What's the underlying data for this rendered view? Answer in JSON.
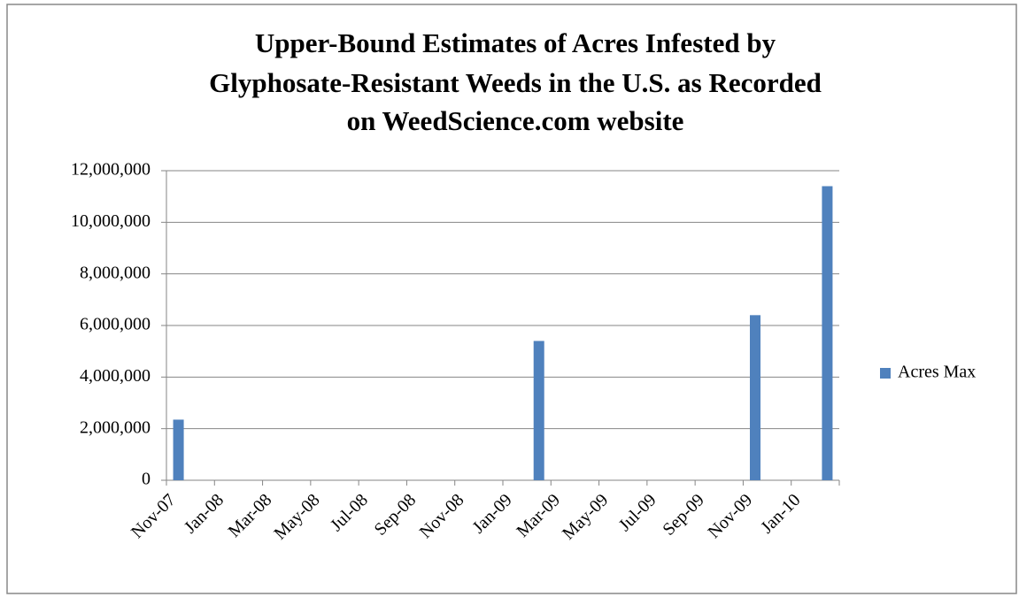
{
  "chart_data": {
    "type": "bar",
    "title": [
      "Upper-Bound Estimates of Acres Infested by",
      "Glyphosate-Resistant Weeds in the U.S. as Recorded",
      "on WeedScience.com website"
    ],
    "categories": [
      "Nov-07",
      null,
      "Jan-08",
      null,
      "Mar-08",
      null,
      "May-08",
      null,
      "Jul-08",
      null,
      "Sep-08",
      null,
      "Nov-08",
      null,
      "Jan-09",
      null,
      "Mar-09",
      null,
      "May-09",
      null,
      "Jul-09",
      null,
      "Sep-09",
      null,
      "Nov-09",
      null,
      "Jan-10",
      null
    ],
    "series": [
      {
        "name": "Acres Max",
        "color": "#4f81bd",
        "values": [
          2350000,
          null,
          null,
          null,
          null,
          null,
          null,
          null,
          null,
          null,
          null,
          null,
          null,
          null,
          null,
          5400000,
          null,
          null,
          null,
          null,
          null,
          null,
          null,
          null,
          6400000,
          null,
          null,
          11400000
        ]
      }
    ],
    "ylim": [
      0,
      12000000
    ],
    "yticks": [
      0,
      {
        "value": 2000000,
        "label": "2,000,000"
      },
      {
        "value": 4000000,
        "label": "4,000,000"
      },
      {
        "value": 6000000,
        "label": "6,000,000"
      },
      {
        "value": 8000000,
        "label": "8,000,000"
      },
      {
        "value": 10000000,
        "label": "10,000,000"
      },
      {
        "value": 12000000,
        "label": "12,000,000"
      }
    ],
    "grid": true,
    "legend": "right"
  }
}
